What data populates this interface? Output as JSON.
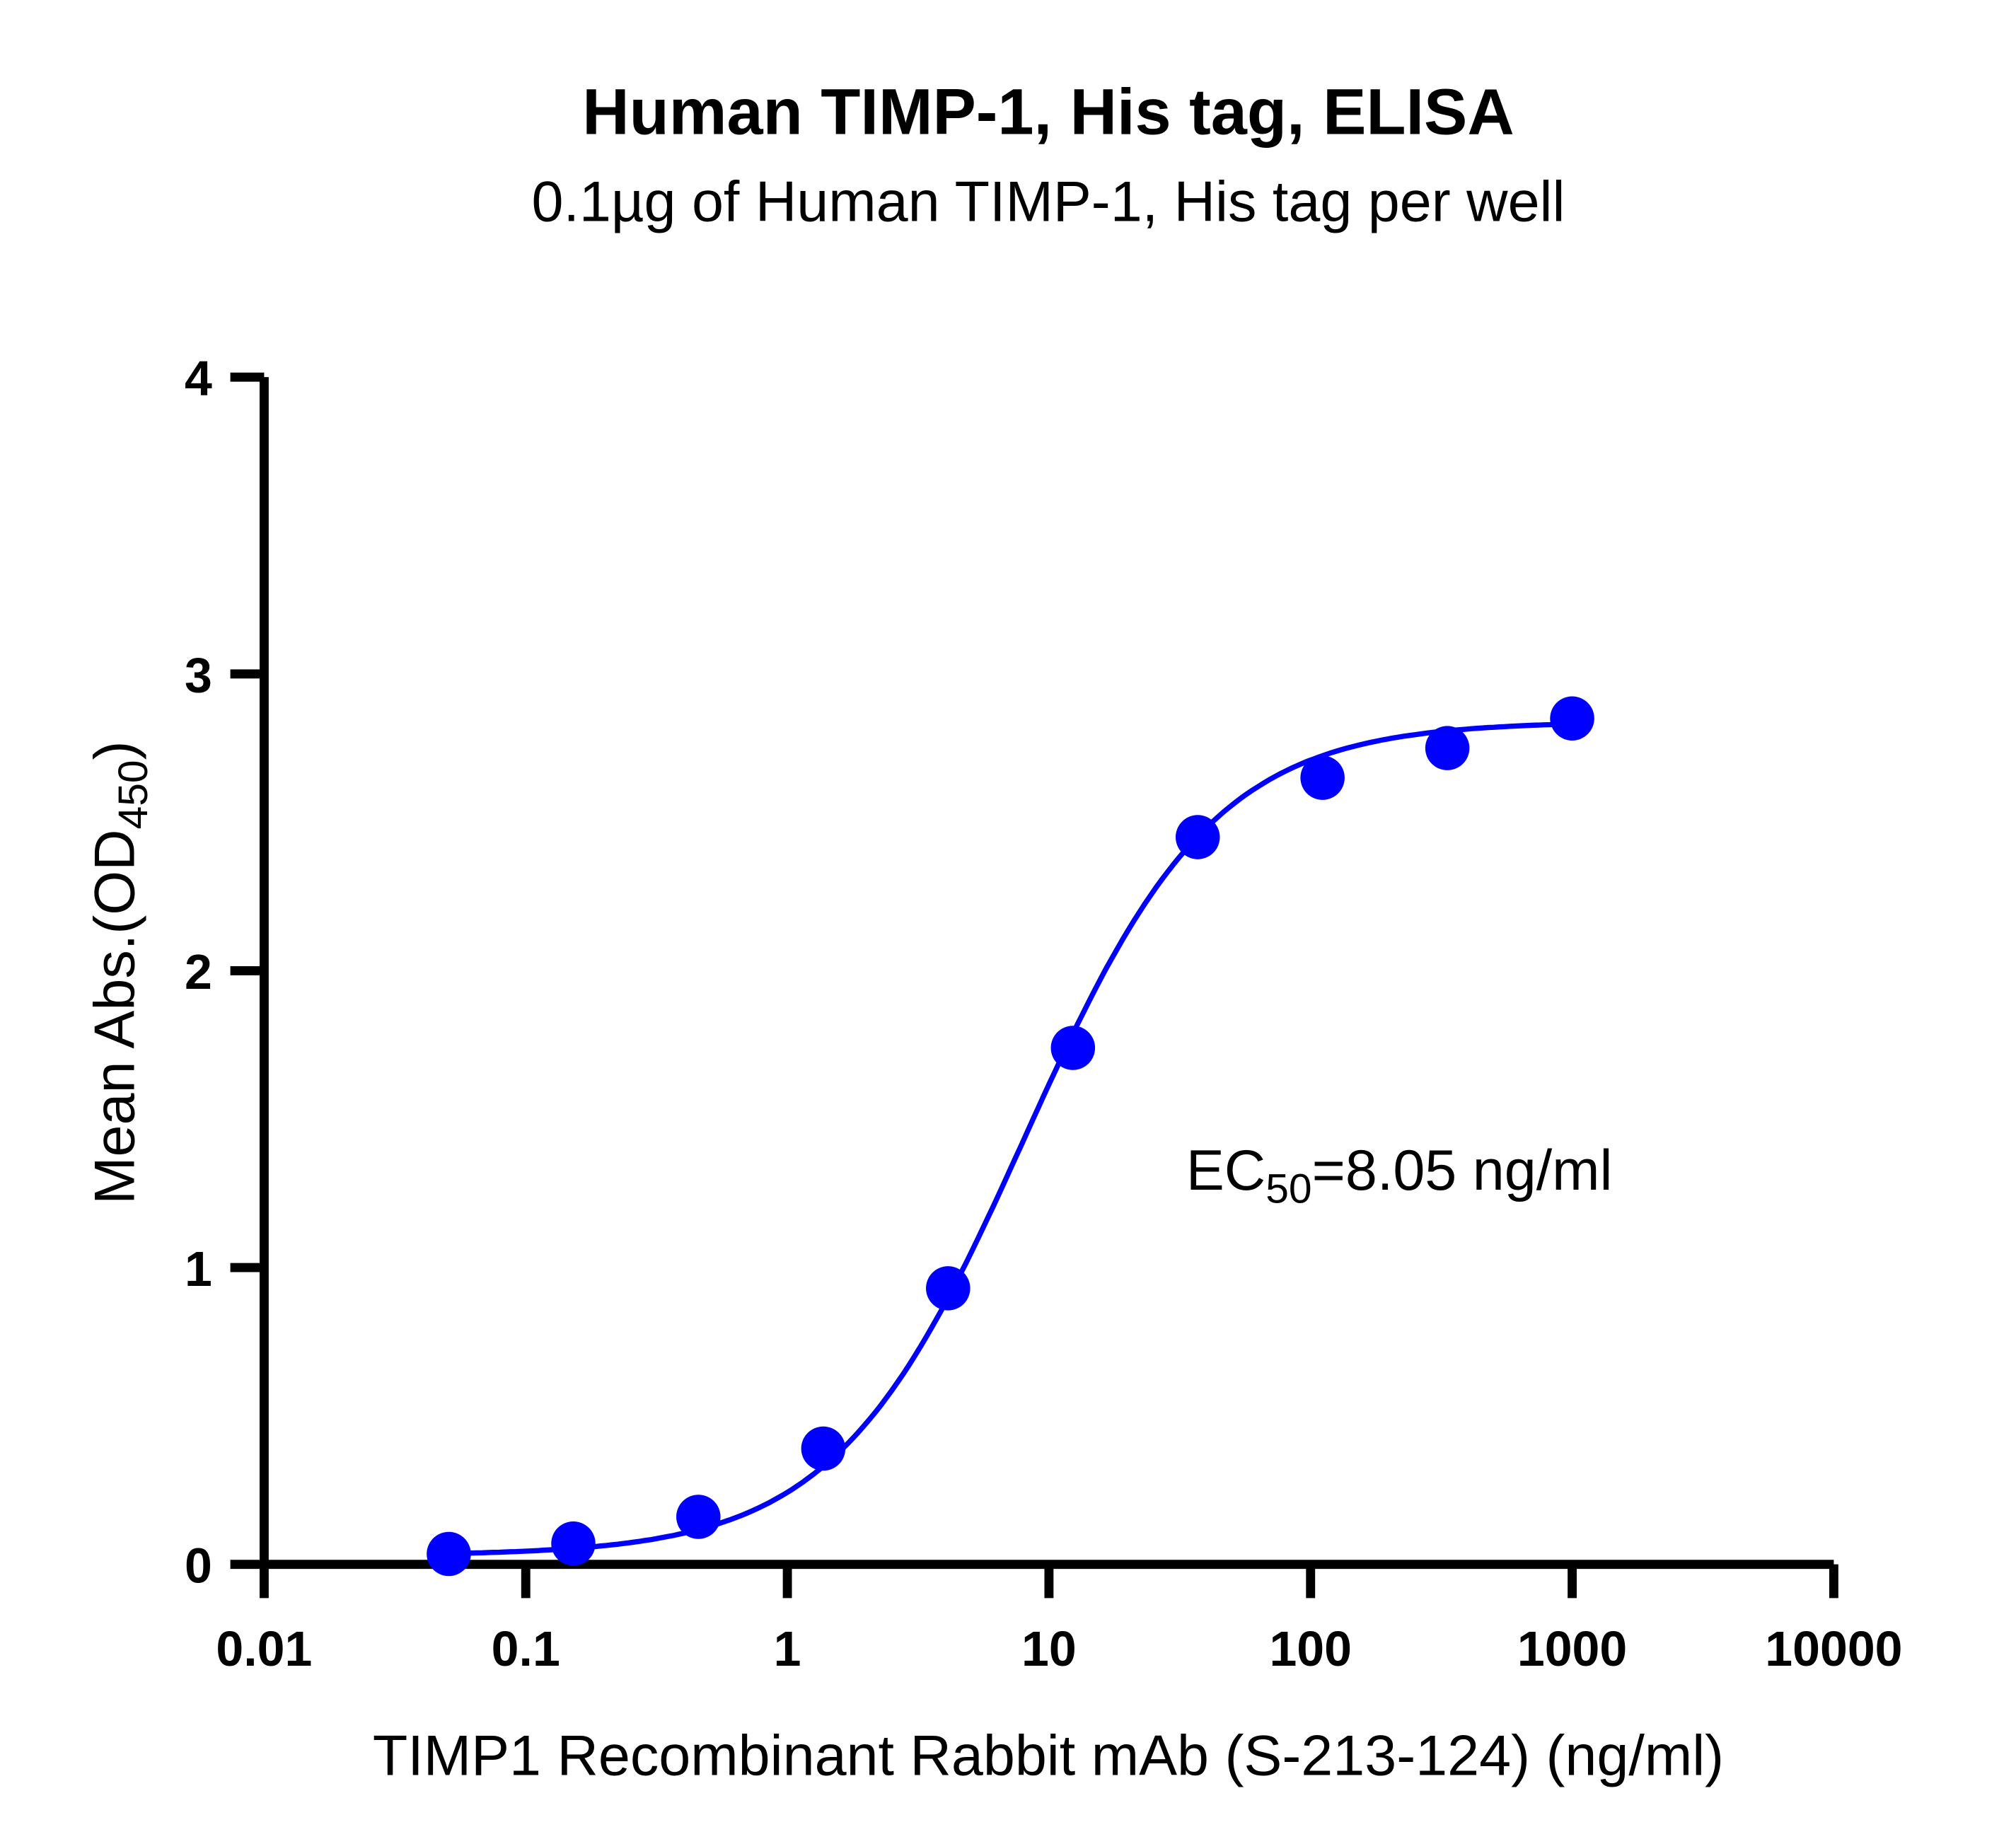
{
  "chart_data": {
    "type": "scatter",
    "title": "Human TIMP-1, His tag, ELISA",
    "subtitle": "0.1µg of Human TIMP-1, His tag per well",
    "xlabel": "TIMP1 Recombinant Rabbit mAb (S-213-124) (ng/ml)",
    "ylabel_main": "Mean Abs.(OD",
    "ylabel_sub": "450",
    "ylabel_end": ")",
    "xscale": "log",
    "xlim": [
      0.01,
      10000
    ],
    "ylim": [
      0,
      4
    ],
    "xticks": [
      0.01,
      0.1,
      1,
      10,
      100,
      1000,
      10000
    ],
    "xtick_labels": [
      "0.01",
      "0.1",
      "1",
      "10",
      "100",
      "1000",
      "10000"
    ],
    "yticks": [
      0,
      1,
      2,
      3,
      4
    ],
    "ytick_labels": [
      "0",
      "1",
      "2",
      "3",
      "4"
    ],
    "grid": false,
    "series": [
      {
        "name": "TIMP1 Recombinant Rabbit mAb",
        "color": "#0000ff",
        "x": [
          0.0508,
          0.152,
          0.457,
          1.372,
          4.115,
          12.35,
          37.04,
          111.1,
          333.3,
          1000
        ],
        "y": [
          0.035,
          0.07,
          0.16,
          0.39,
          0.93,
          1.74,
          2.45,
          2.65,
          2.75,
          2.85
        ],
        "fit": {
          "model": "4PL",
          "bottom": 0.03,
          "top": 2.84,
          "ec50": 8.05,
          "hill": 1.2
        }
      }
    ],
    "annotation": {
      "prefix": "EC",
      "sub": "50",
      "text": "=8.05 ng/ml"
    }
  }
}
